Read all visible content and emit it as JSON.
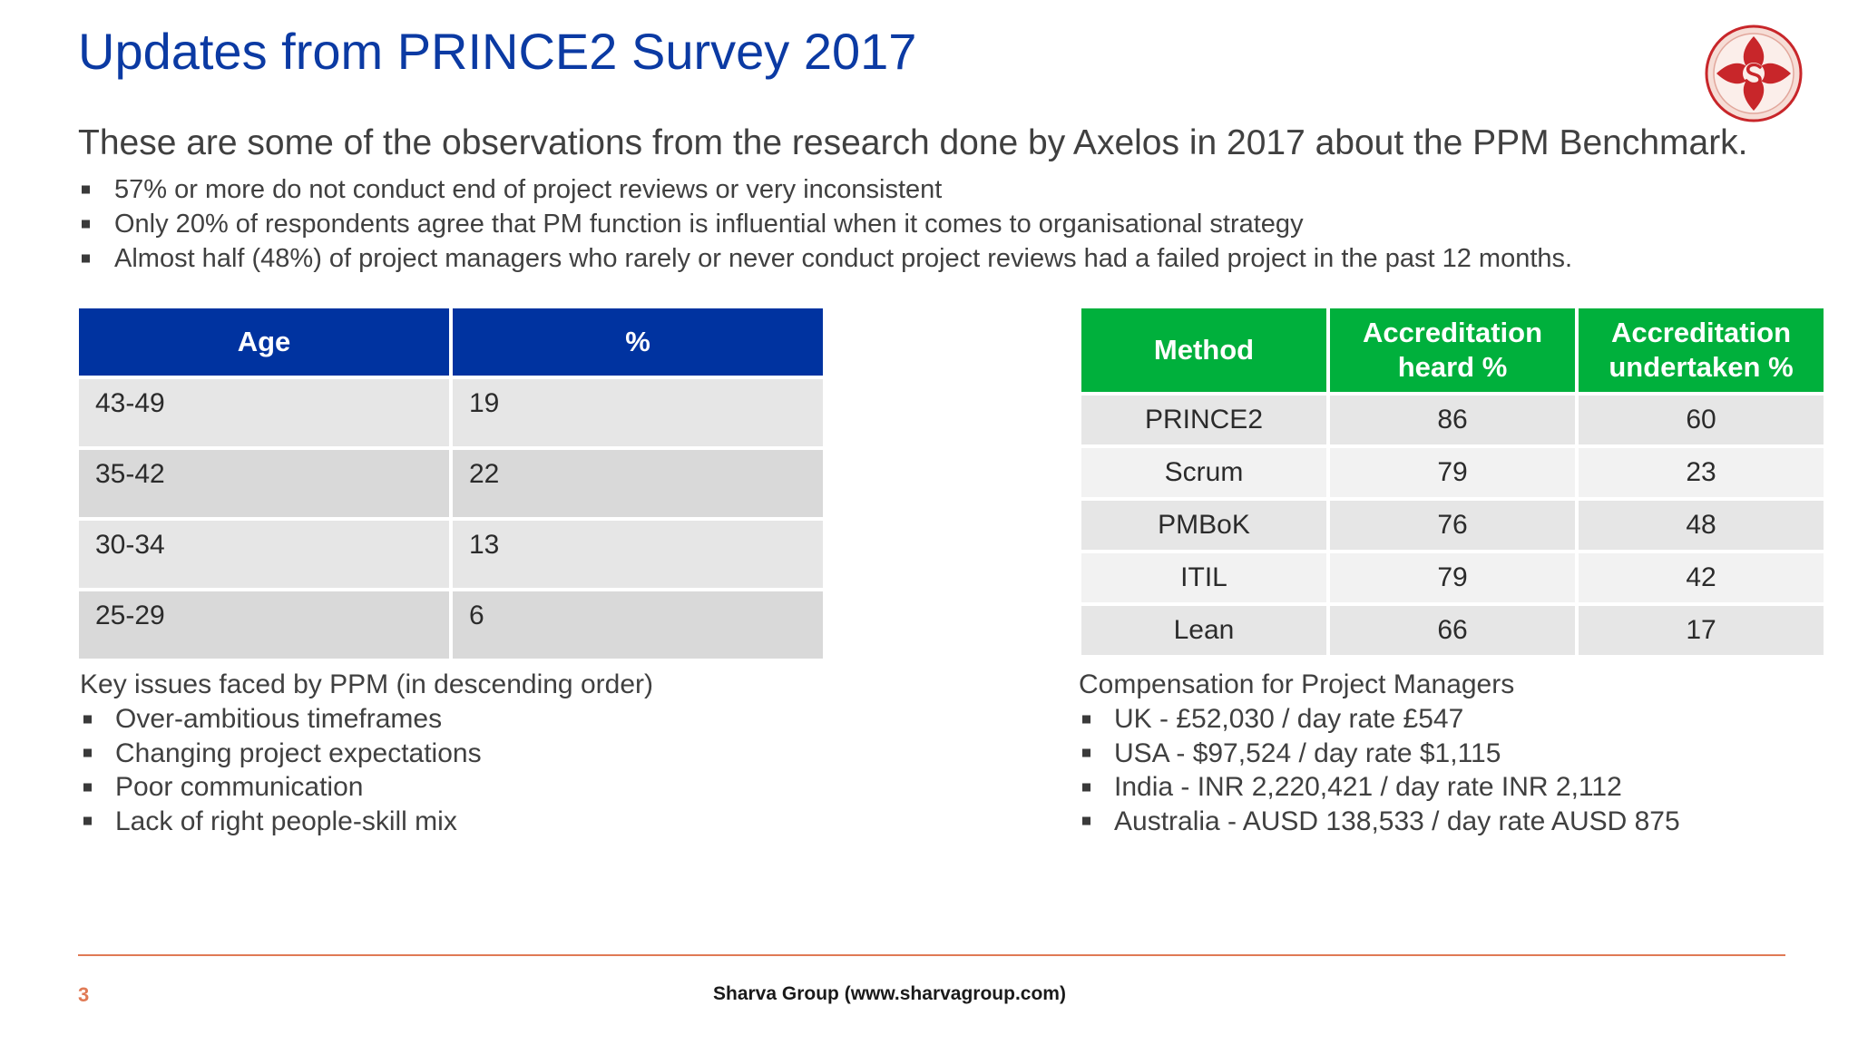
{
  "title": "Updates from PRINCE2 Survey 2017",
  "intro": "These are some of the observations from the research done by Axelos in 2017 about the PPM Benchmark.",
  "observations": [
    "57% or more do not conduct end of project reviews or very inconsistent",
    "Only 20% of respondents agree that PM function is influential when it comes to organisational strategy",
    "Almost half (48%) of project managers who rarely or never conduct project reviews had a failed project in the past 12 months."
  ],
  "age_table": {
    "headers": [
      "Age",
      "%"
    ],
    "header_color": "#0033a0",
    "rows": [
      [
        "43-49",
        "19"
      ],
      [
        "35-42",
        "22"
      ],
      [
        "30-34",
        "13"
      ],
      [
        "25-29",
        "6"
      ]
    ]
  },
  "method_table": {
    "headers": [
      "Method",
      "Accreditation\nheard %",
      "Accreditation\nundertaken %"
    ],
    "header_color": "#00b03c",
    "rows": [
      [
        "PRINCE2",
        "86",
        "60"
      ],
      [
        "Scrum",
        "79",
        "23"
      ],
      [
        "PMBoK",
        "76",
        "48"
      ],
      [
        "ITIL",
        "79",
        "42"
      ],
      [
        "Lean",
        "66",
        "17"
      ]
    ]
  },
  "issues": {
    "heading": "Key issues faced by PPM (in descending order)",
    "items": [
      "Over-ambitious timeframes",
      "Changing project expectations",
      "Poor communication",
      "Lack of right people-skill mix"
    ]
  },
  "compensation": {
    "heading": "Compensation for Project Managers",
    "items": [
      "UK - £52,030 / day rate £547",
      "USA - $97,524 / day rate $1,115",
      "India - INR 2,220,421 / day rate INR 2,112",
      "Australia - AUSD 138,533 / day rate AUSD 875"
    ]
  },
  "footer": {
    "page_number": "3",
    "text": "Sharva Group (www.sharvagroup.com)"
  },
  "colors": {
    "title": "#0b3aa3",
    "accent_rule": "#e07a55"
  },
  "logo_icon": "sharva-swirl-logo"
}
